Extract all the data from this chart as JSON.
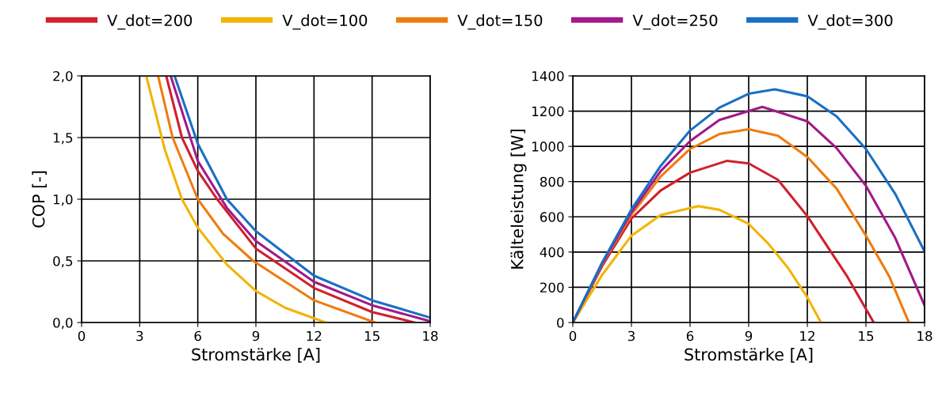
{
  "chart_data": [
    {
      "type": "line",
      "xlabel": "Stromstärke [A]",
      "ylabel": "COP [-]",
      "xlim": [
        0,
        18
      ],
      "ylim": [
        0,
        2
      ],
      "xticks": [
        0,
        3,
        6,
        9,
        12,
        15,
        18
      ],
      "yticks": [
        {
          "value": 0,
          "label": "0,0"
        },
        {
          "value": 0.5,
          "label": "0,5"
        },
        {
          "value": 1,
          "label": "1,0"
        },
        {
          "value": 1.5,
          "label": "1,5"
        },
        {
          "value": 2,
          "label": "2,0"
        }
      ],
      "grid": true,
      "legend": "top",
      "series": [
        {
          "name": "V_dot=200",
          "color": "#d0202e",
          "x": [
            4.37,
            5.18,
            6,
            7,
            9,
            12,
            15,
            17.2
          ],
          "values": [
            2,
            1.5,
            1.23,
            1,
            0.6,
            0.28,
            0.085,
            0
          ]
        },
        {
          "name": "V_dot=100",
          "color": "#f2b400",
          "x": [
            3.34,
            4.3,
            5.18,
            6,
            7.5,
            9,
            10.5,
            12.6
          ],
          "values": [
            2,
            1.4,
            1,
            0.77,
            0.47,
            0.256,
            0.12,
            0
          ]
        },
        {
          "name": "V_dot=150",
          "color": "#ef7b10",
          "x": [
            3.95,
            4.7,
            6,
            7.3,
            8.86,
            12,
            15.15
          ],
          "values": [
            2,
            1.5,
            1,
            0.72,
            0.5,
            0.18,
            0
          ]
        },
        {
          "name": "V_dot=250",
          "color": "#a2198a",
          "x": [
            4.6,
            6,
            7.5,
            9,
            12,
            15,
            18
          ],
          "values": [
            2,
            1.31,
            0.93,
            0.66,
            0.33,
            0.14,
            0.01
          ]
        },
        {
          "name": "V_dot=300",
          "color": "#1a6fc4",
          "x": [
            4.8,
            6,
            7.5,
            9,
            12,
            15,
            18
          ],
          "values": [
            2,
            1.45,
            1,
            0.74,
            0.38,
            0.18,
            0.04
          ]
        }
      ]
    },
    {
      "type": "line",
      "xlabel": "Stromstärke [A]",
      "ylabel": "Kälteleistung [W]",
      "xlim": [
        0,
        18
      ],
      "ylim": [
        0,
        1400
      ],
      "xticks": [
        0,
        3,
        6,
        9,
        12,
        15,
        18
      ],
      "yticks": [
        0,
        200,
        400,
        600,
        800,
        1000,
        1200,
        1400
      ],
      "grid": true,
      "legend": "top",
      "series": [
        {
          "name": "V_dot=200",
          "color": "#d0202e",
          "x": [
            0,
            1.5,
            3,
            4.5,
            6,
            7.9,
            9,
            10.5,
            12,
            14,
            15.4
          ],
          "values": [
            0,
            320,
            590,
            750,
            851,
            918,
            903,
            810,
            604,
            269,
            0
          ]
        },
        {
          "name": "V_dot=100",
          "color": "#f2b400",
          "x": [
            0,
            1.5,
            3,
            4.5,
            6.42,
            7.5,
            9,
            10,
            11,
            12,
            12.7
          ],
          "values": [
            0,
            270,
            493,
            610,
            661,
            640,
            560,
            448,
            312,
            143,
            0
          ]
        },
        {
          "name": "V_dot=150",
          "color": "#ef7b10",
          "x": [
            0,
            1.5,
            3,
            4.5,
            6,
            7.5,
            9,
            10.5,
            12,
            13.5,
            15,
            16.2,
            17.2
          ],
          "values": [
            0,
            330,
            612,
            830,
            985,
            1070,
            1097,
            1060,
            940,
            760,
            493,
            260,
            0
          ]
        },
        {
          "name": "V_dot=250",
          "color": "#a2198a",
          "x": [
            0,
            1.5,
            3,
            4.5,
            6,
            7.5,
            9.7,
            12,
            13.5,
            15,
            16.5,
            18
          ],
          "values": [
            0,
            335,
            627,
            860,
            1030,
            1150,
            1224,
            1142,
            990,
            776,
            480,
            97
          ]
        },
        {
          "name": "V_dot=300",
          "color": "#1a6fc4",
          "x": [
            0,
            1.5,
            3,
            4.5,
            6,
            7.5,
            9,
            10.34,
            12,
            13.5,
            15,
            16.5,
            18
          ],
          "values": [
            0,
            340,
            642,
            890,
            1090,
            1220,
            1299,
            1324,
            1284,
            1170,
            985,
            730,
            403
          ]
        }
      ]
    }
  ]
}
